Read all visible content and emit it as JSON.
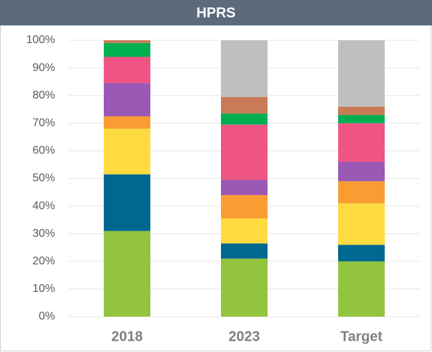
{
  "chart_data": {
    "type": "stacked_bar",
    "title": "HPRS",
    "categories": [
      "2018",
      "2023",
      "Target"
    ],
    "series": [
      {
        "color": "#92c43f",
        "values": [
          31,
          21,
          20
        ]
      },
      {
        "color": "#006890",
        "values": [
          20.5,
          5.5,
          6
        ]
      },
      {
        "color": "#ffdb3f",
        "values": [
          16.5,
          9,
          15
        ]
      },
      {
        "color": "#f99d33",
        "values": [
          4.5,
          8.5,
          8
        ]
      },
      {
        "color": "#9b59b6",
        "values": [
          12,
          5.5,
          7
        ]
      },
      {
        "color": "#ee5584",
        "values": [
          9.5,
          20,
          14
        ]
      },
      {
        "color": "#00b050",
        "values": [
          5,
          4,
          3
        ]
      },
      {
        "color": "#c87b56",
        "values": [
          1,
          6,
          3
        ]
      },
      {
        "color": "#bfbfbf",
        "values": [
          0,
          20.5,
          24
        ]
      }
    ],
    "ylim": [
      0,
      100
    ],
    "yticks": [
      {
        "value": 0,
        "label": "0%"
      },
      {
        "value": 10,
        "label": "10%"
      },
      {
        "value": 20,
        "label": "20%"
      },
      {
        "value": 30,
        "label": "30%"
      },
      {
        "value": 40,
        "label": "40%"
      },
      {
        "value": 50,
        "label": "50%"
      },
      {
        "value": 60,
        "label": "60%"
      },
      {
        "value": 70,
        "label": "70%"
      },
      {
        "value": 80,
        "label": "80%"
      },
      {
        "value": 90,
        "label": "90%"
      },
      {
        "value": 100,
        "label": "100%"
      }
    ],
    "grid": true
  }
}
